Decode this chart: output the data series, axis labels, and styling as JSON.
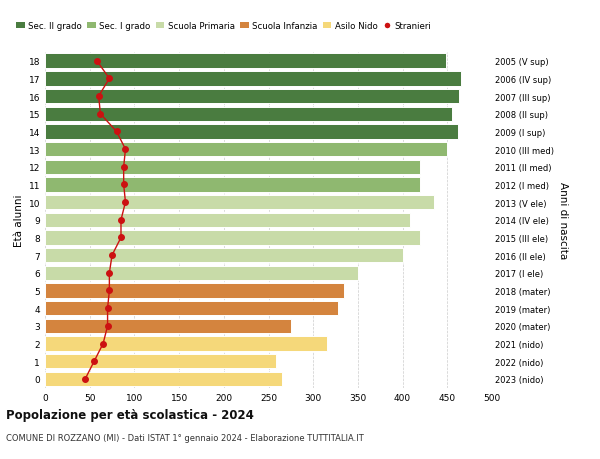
{
  "ages": [
    0,
    1,
    2,
    3,
    4,
    5,
    6,
    7,
    8,
    9,
    10,
    11,
    12,
    13,
    14,
    15,
    16,
    17,
    18
  ],
  "bar_values": [
    265,
    258,
    315,
    275,
    328,
    335,
    350,
    400,
    420,
    408,
    435,
    420,
    420,
    450,
    462,
    455,
    463,
    465,
    448
  ],
  "bar_colors": [
    "#f5d87a",
    "#f5d87a",
    "#f5d87a",
    "#d4843e",
    "#d4843e",
    "#d4843e",
    "#c8dba8",
    "#c8dba8",
    "#c8dba8",
    "#c8dba8",
    "#c8dba8",
    "#8fb870",
    "#8fb870",
    "#8fb870",
    "#4a7c40",
    "#4a7c40",
    "#4a7c40",
    "#4a7c40",
    "#4a7c40"
  ],
  "stranieri_values": [
    45,
    55,
    65,
    70,
    70,
    72,
    72,
    75,
    85,
    85,
    90,
    88,
    88,
    90,
    80,
    62,
    60,
    72,
    58
  ],
  "right_labels": [
    "2023 (nido)",
    "2022 (nido)",
    "2021 (nido)",
    "2020 (mater)",
    "2019 (mater)",
    "2018 (mater)",
    "2017 (I ele)",
    "2016 (II ele)",
    "2015 (III ele)",
    "2014 (IV ele)",
    "2013 (V ele)",
    "2012 (I med)",
    "2011 (II med)",
    "2010 (III med)",
    "2009 (I sup)",
    "2008 (II sup)",
    "2007 (III sup)",
    "2006 (IV sup)",
    "2005 (V sup)"
  ],
  "legend_labels": [
    "Sec. II grado",
    "Sec. I grado",
    "Scuola Primaria",
    "Scuola Infanzia",
    "Asilo Nido",
    "Stranieri"
  ],
  "legend_colors": [
    "#4a7c40",
    "#8fb870",
    "#c8dba8",
    "#d4843e",
    "#f5d87a",
    "#cc1111"
  ],
  "ylabel_left": "Età alunni",
  "ylabel_right": "Anni di nascita",
  "title": "Popolazione per età scolastica - 2024",
  "subtitle": "COMUNE DI ROZZANO (MI) - Dati ISTAT 1° gennaio 2024 - Elaborazione TUTTITALIA.IT",
  "xlim": [
    0,
    500
  ],
  "xticks": [
    0,
    50,
    100,
    150,
    200,
    250,
    300,
    350,
    400,
    450,
    500
  ],
  "background_color": "#ffffff",
  "grid_color": "#cccccc"
}
